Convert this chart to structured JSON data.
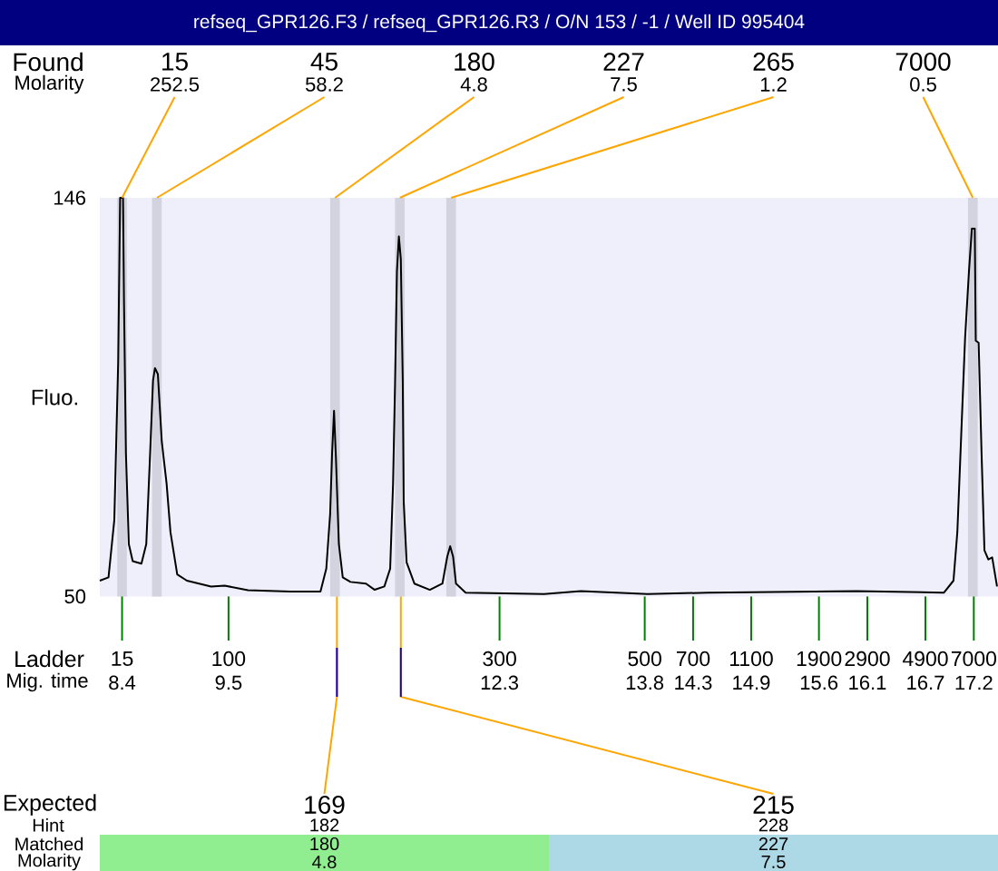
{
  "chart_data": {
    "type": "line",
    "title": "refseq_GPR126.F3 / refseq_GPR126.R3 / O/N 153 / -1 / Well ID 995404",
    "ylabel": "Fluo.",
    "xlabel": "Mig. time",
    "x": [
      8.17,
      8.26,
      8.32,
      8.36,
      8.38,
      8.41,
      8.42,
      8.44,
      8.47,
      8.51,
      8.6,
      8.65,
      8.69,
      8.72,
      8.74,
      8.77,
      8.81,
      8.86,
      8.9,
      8.97,
      9.07,
      9.32,
      9.46,
      9.7,
      10.14,
      10.45,
      10.51,
      10.55,
      10.57,
      10.59,
      10.61,
      10.64,
      10.68,
      10.76,
      10.92,
      11.01,
      11.11,
      11.17,
      11.2,
      11.22,
      11.24,
      11.26,
      11.28,
      11.3,
      11.31,
      11.34,
      11.42,
      11.58,
      11.71,
      11.76,
      11.79,
      11.82,
      11.85,
      11.95,
      12.76,
      13.14,
      13.83,
      14.45,
      15.99,
      16.89,
      16.99,
      17.03,
      17.07,
      17.11,
      17.15,
      17.18,
      17.21,
      17.22,
      17.25,
      17.28,
      17.31,
      17.35,
      17.39,
      17.44
    ],
    "values": [
      53.8,
      54.6,
      68.4,
      106.4,
      146,
      146,
      121,
      84.5,
      62.6,
      58.5,
      57.9,
      62.6,
      84.5,
      102,
      105,
      103.5,
      87.4,
      77.2,
      65.5,
      55.3,
      53.8,
      52.4,
      52.6,
      51.5,
      51.2,
      51.2,
      56.7,
      69.9,
      84.5,
      94.7,
      83.1,
      62.6,
      54.6,
      53.5,
      53.1,
      51.6,
      52.4,
      56.7,
      77.2,
      100.6,
      128.3,
      136.7,
      131.3,
      102,
      72.8,
      58.2,
      53.1,
      51.6,
      53.1,
      59.6,
      62.1,
      59.6,
      53.1,
      50.9,
      50.6,
      51.3,
      50.6,
      50.9,
      51.3,
      50.9,
      53.8,
      65.5,
      88.9,
      112.3,
      128.3,
      138.6,
      138.6,
      111.6,
      111.1,
      84.5,
      61.1,
      58.9,
      59.4,
      52.4
    ],
    "color": "#000000",
    "xlim": [
      8.17,
      17.45
    ],
    "ylim": [
      50,
      146
    ],
    "xticks": [
      8.4,
      9.5,
      12.3,
      13.8,
      14.3,
      14.9,
      15.6,
      16.1,
      16.7,
      17.2
    ],
    "yticks": [
      50,
      146
    ],
    "bands": [
      {
        "axis": "x",
        "from": 8.35,
        "to": 8.45,
        "color": "#d3d3e0"
      },
      {
        "axis": "x",
        "from": 8.71,
        "to": 8.81,
        "color": "#d3d3e0"
      },
      {
        "axis": "x",
        "from": 10.55,
        "to": 10.65,
        "color": "#d3d3e0"
      },
      {
        "axis": "x",
        "from": 11.22,
        "to": 11.32,
        "color": "#d3d3e0"
      },
      {
        "axis": "x",
        "from": 11.75,
        "to": 11.85,
        "color": "#d3d3e0"
      },
      {
        "axis": "x",
        "from": 17.14,
        "to": 17.24,
        "color": "#d3d3e0"
      }
    ],
    "annotations": [
      "Found",
      "Molarity",
      "Ladder",
      "Expected",
      "Hint",
      "Matched",
      "Molarity",
      "15",
      "100",
      "300",
      "500",
      "700",
      "1100",
      "1900",
      "2900",
      "4900",
      "7000",
      {
        "text": "15",
        "x": 8.4,
        "y": 146
      },
      "252.5",
      {
        "text": "45",
        "x": 8.76,
        "y": 146
      },
      "58.2",
      {
        "text": "180",
        "x": 10.6,
        "y": 146
      },
      "4.8",
      {
        "text": "227",
        "x": 11.27,
        "y": 146
      },
      "7.5",
      {
        "text": "265",
        "x": 11.8,
        "y": 146
      },
      "1.2",
      {
        "text": "7000",
        "x": 17.19,
        "y": 146
      },
      "0.5",
      {
        "text": "169",
        "x": 10.62,
        "y": 50
      },
      "182",
      "180",
      "4.8",
      {
        "text": "215",
        "x": 11.28,
        "y": 50
      },
      "228",
      "227",
      "7.5"
    ]
  }
}
